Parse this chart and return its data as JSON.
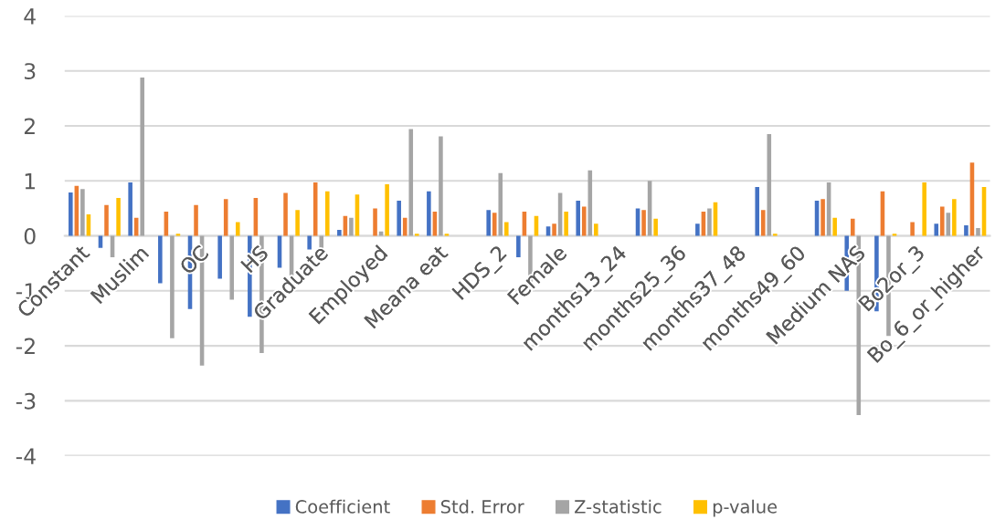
{
  "chart_data": {
    "type": "bar",
    "categories": [
      "Constant",
      null,
      "Muslim",
      null,
      "OC",
      null,
      "HS",
      null,
      "Graduate",
      null,
      "Employed",
      null,
      "Meana eat",
      null,
      "HDS_2",
      null,
      "Female",
      null,
      "months13_24",
      null,
      "months25_36",
      null,
      "months37_48",
      null,
      "months49_60",
      null,
      "Medium NAS",
      null,
      "Bo2or_3",
      null,
      "Bo_6_or_higher"
    ],
    "series": [
      {
        "name": "Coefficient",
        "color": "#4472c4",
        "values": [
          0.79,
          -0.22,
          0.97,
          -0.86,
          -1.33,
          -0.78,
          -1.47,
          -0.58,
          -0.25,
          0.11,
          null,
          0.64,
          0.81,
          null,
          0.47,
          -0.39,
          0.17,
          0.64,
          null,
          0.5,
          null,
          0.22,
          null,
          0.89,
          null,
          0.64,
          -1.0,
          -1.37,
          null,
          0.22,
          0.19
        ]
      },
      {
        "name": "Std. Error",
        "color": "#ed7d31",
        "values": [
          0.91,
          0.56,
          0.33,
          0.44,
          0.56,
          0.67,
          0.69,
          0.78,
          0.97,
          0.36,
          0.5,
          0.33,
          0.44,
          null,
          0.42,
          0.44,
          0.22,
          0.53,
          null,
          0.47,
          null,
          0.44,
          null,
          0.47,
          null,
          0.67,
          0.31,
          0.81,
          0.25,
          0.53,
          1.33
        ]
      },
      {
        "name": "Z-statistic",
        "color": "#a5a5a5",
        "values": [
          0.85,
          -0.39,
          2.88,
          -1.86,
          -2.36,
          -1.16,
          -2.13,
          -0.72,
          -0.25,
          0.33,
          0.08,
          1.94,
          1.81,
          null,
          1.14,
          -0.89,
          0.78,
          1.19,
          null,
          1.0,
          null,
          0.5,
          null,
          1.85,
          null,
          0.97,
          -3.26,
          -1.82,
          null,
          0.42,
          0.14
        ]
      },
      {
        "name": "p-value",
        "color": "#ffc000",
        "values": [
          0.39,
          0.69,
          null,
          0.04,
          null,
          0.25,
          null,
          0.47,
          0.81,
          0.75,
          0.94,
          0.04,
          0.04,
          null,
          0.25,
          0.36,
          0.44,
          0.22,
          null,
          0.31,
          null,
          0.61,
          null,
          0.04,
          null,
          0.33,
          null,
          0.04,
          0.97,
          0.67,
          0.89
        ]
      }
    ],
    "ylim": [
      -4,
      4
    ],
    "yticks": [
      -4,
      -3,
      -2,
      -1,
      0,
      1,
      2,
      3,
      4
    ],
    "grid": "y",
    "legend": "bottom"
  }
}
